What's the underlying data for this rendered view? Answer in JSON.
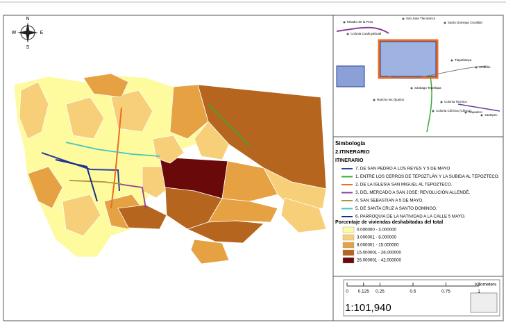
{
  "compass": {
    "n": "N",
    "s": "S",
    "e": "E",
    "w": "W"
  },
  "inset_labels": [
    "Mirador de la Pera",
    "San Juan Tlacotenco",
    "Santo Domingo Ocotitlán",
    "Colonia Cuahuyahuatl",
    "Tlapetlaloya",
    "Amatlán",
    "Colonia Tecmico",
    "Santiago Tepetlapa",
    "Rancho los Ojuelos",
    "Colonia Chichos (Chisco)",
    "Capadero",
    "Yautepec"
  ],
  "legend": {
    "title": "Simbología",
    "group": "2.ITINERARIO",
    "subgroup": "ITINERARIO",
    "routes": [
      {
        "name": "7. DE SAN PEDRO A LOS REYES Y 5 DE MAYO",
        "color": "#2b3f9e"
      },
      {
        "name": "1. ENTRE LOS CERROS DE TEPOZTLÁN Y LA SUBIDA AL TEPOZTECO.",
        "color": "#3aa935"
      },
      {
        "name": "2. DE LA IGLESIA SAN MIGUEL AL TEPOZTECO.",
        "color": "#ef6b1f"
      },
      {
        "name": "3. DEL MERCADO A SAN JOSE: REVOLUCIÓN ALLENDÉ.",
        "color": "#8e3c9c"
      },
      {
        "name": "4. SAN SEBASTIAN A 5 DE MAYO.",
        "color": "#b39131"
      },
      {
        "name": "5. DE SANTA CRUZ A SANTO DOMINGO.",
        "color": "#45c4c0"
      },
      {
        "name": "6. PARROQUIA DE LA NATIVIDAD A LA CALLE 5 MAYO.",
        "color": "#1c2b86"
      }
    ],
    "classes_title": "Porcentaje de viviendas deshabitadas del total",
    "classes": [
      {
        "name": "0.000000 - 3.000000",
        "color": "#fdfb9e"
      },
      {
        "name": "3.000001 - 8.000000",
        "color": "#f7cf78"
      },
      {
        "name": "8.000001 - 15.000000",
        "color": "#e6a143"
      },
      {
        "name": "15.000001 - 26.000000",
        "color": "#b6651e"
      },
      {
        "name": "26.000001 - 42.000000",
        "color": "#6a0909"
      }
    ]
  },
  "scale": {
    "ticks": [
      0,
      0.125,
      0.25,
      0.5,
      0.75,
      1
    ],
    "unit": "Kilometers",
    "ratio": "1:101,940"
  }
}
